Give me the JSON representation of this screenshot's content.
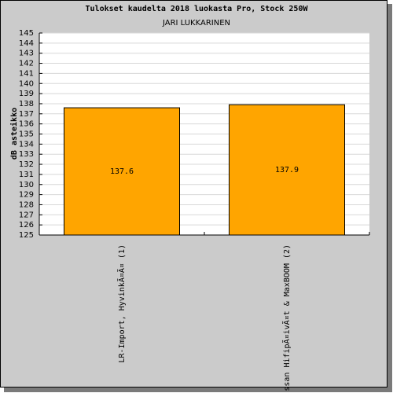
{
  "chart_data": {
    "type": "bar",
    "title": "Tulokset kaudelta 2018 luokasta Pro, Stock 250W",
    "subtitle": "JARI LUKKARINEN",
    "y_label": "dB asteikko",
    "categories": [
      "LR-Import, HyvinkÃ¤Ã¤ (1)",
      "ssan HifipÃ¤ivÃ¤t & MaxBOOM (2)"
    ],
    "values": [
      137.6,
      137.9
    ],
    "color": "#ffa500",
    "ylim": [
      125,
      145
    ],
    "yticks": [
      125,
      126,
      127,
      128,
      129,
      130,
      131,
      132,
      133,
      134,
      135,
      136,
      137,
      138,
      139,
      140,
      141,
      142,
      143,
      144,
      145
    ],
    "grid": true
  }
}
